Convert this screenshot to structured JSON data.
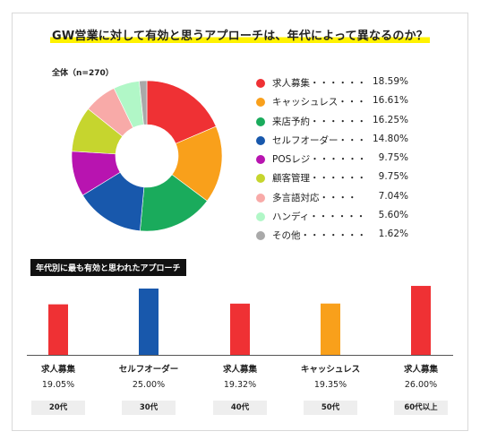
{
  "title": "GW営業に対して有効と思うアプローチは、年代によって異なるのか？",
  "donut": {
    "total_label": "全体（n=270）"
  },
  "chart_data": [
    {
      "type": "pie",
      "title": "GW営業に対して有効と思うアプローチは、年代によって異なるのか？",
      "subtitle": "全体（n=270）",
      "donut": true,
      "categories": [
        "求人募集",
        "キャッシュレス",
        "来店予約",
        "セルフオーダー",
        "POSレジ",
        "顧客管理",
        "多言語対応",
        "ハンディ",
        "その他"
      ],
      "values": [
        18.59,
        16.61,
        16.25,
        14.8,
        9.75,
        9.75,
        7.04,
        5.6,
        1.62
      ],
      "labels": [
        "求人募集・・・・・・",
        "キャッシュレス・・・",
        "来店予約・・・・・・",
        "セルフオーダー・・・",
        "POSレジ・・・・・・",
        "顧客管理・・・・・・",
        "多言語対応・・・・",
        "ハンディ・・・・・・",
        "その他・・・・・・・"
      ],
      "value_labels": [
        "18.59%",
        "16.61%",
        "16.25%",
        "14.80%",
        "9.75%",
        "9.75%",
        "7.04%",
        "5.60%",
        "1.62%"
      ],
      "colors": [
        "#ef3134",
        "#f9a01b",
        "#1aab5c",
        "#1858ac",
        "#b814b0",
        "#c6d52e",
        "#f8aaa8",
        "#b1f7c7",
        "#a9a9a9"
      ],
      "legend_position": "right"
    },
    {
      "type": "bar",
      "title": "年代別に最も有効と思われたアプローチ",
      "categories": [
        "20代",
        "30代",
        "40代",
        "50代",
        "60代以上"
      ],
      "top_item": [
        "求人募集",
        "セルフオーダー",
        "求人募集",
        "キャッシュレス",
        "求人募集"
      ],
      "values": [
        19.05,
        25.0,
        19.32,
        19.35,
        26.0
      ],
      "value_labels": [
        "19.05%",
        "25.00%",
        "19.32%",
        "19.35%",
        "26.00%"
      ],
      "colors": [
        "#ef3134",
        "#1858ac",
        "#ef3134",
        "#f9a01b",
        "#ef3134"
      ],
      "grid": false
    }
  ]
}
